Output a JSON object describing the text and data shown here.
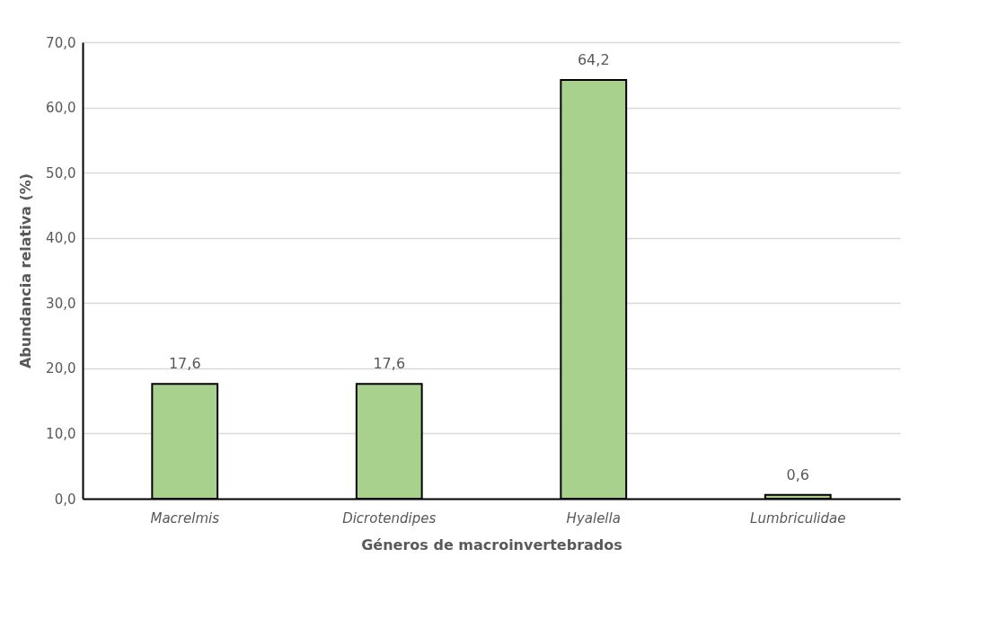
{
  "chart_data": {
    "type": "bar",
    "xlabel": "Géneros de macroinvertebrados",
    "ylabel": "Abundancia relativa (%)",
    "categories": [
      "Macrelmis",
      "Dicrotendipes",
      "Hyalella",
      "Lumbriculidae"
    ],
    "values": [
      17.6,
      17.6,
      64.2,
      0.6
    ],
    "color": "#a9d18e",
    "value_labels": [
      "17,6",
      "17,6",
      "64,2",
      "0,6"
    ],
    "ylim": [
      0,
      70
    ],
    "yticks": [
      {
        "value": 0,
        "label": "0,0"
      },
      {
        "value": 10,
        "label": "10,0"
      },
      {
        "value": 20,
        "label": "20,0"
      },
      {
        "value": 30,
        "label": "30,0"
      },
      {
        "value": 40,
        "label": "40,0"
      },
      {
        "value": 50,
        "label": "50,0"
      },
      {
        "value": 60,
        "label": "60,0"
      },
      {
        "value": 70,
        "label": "70,0"
      }
    ],
    "grid": "y"
  }
}
